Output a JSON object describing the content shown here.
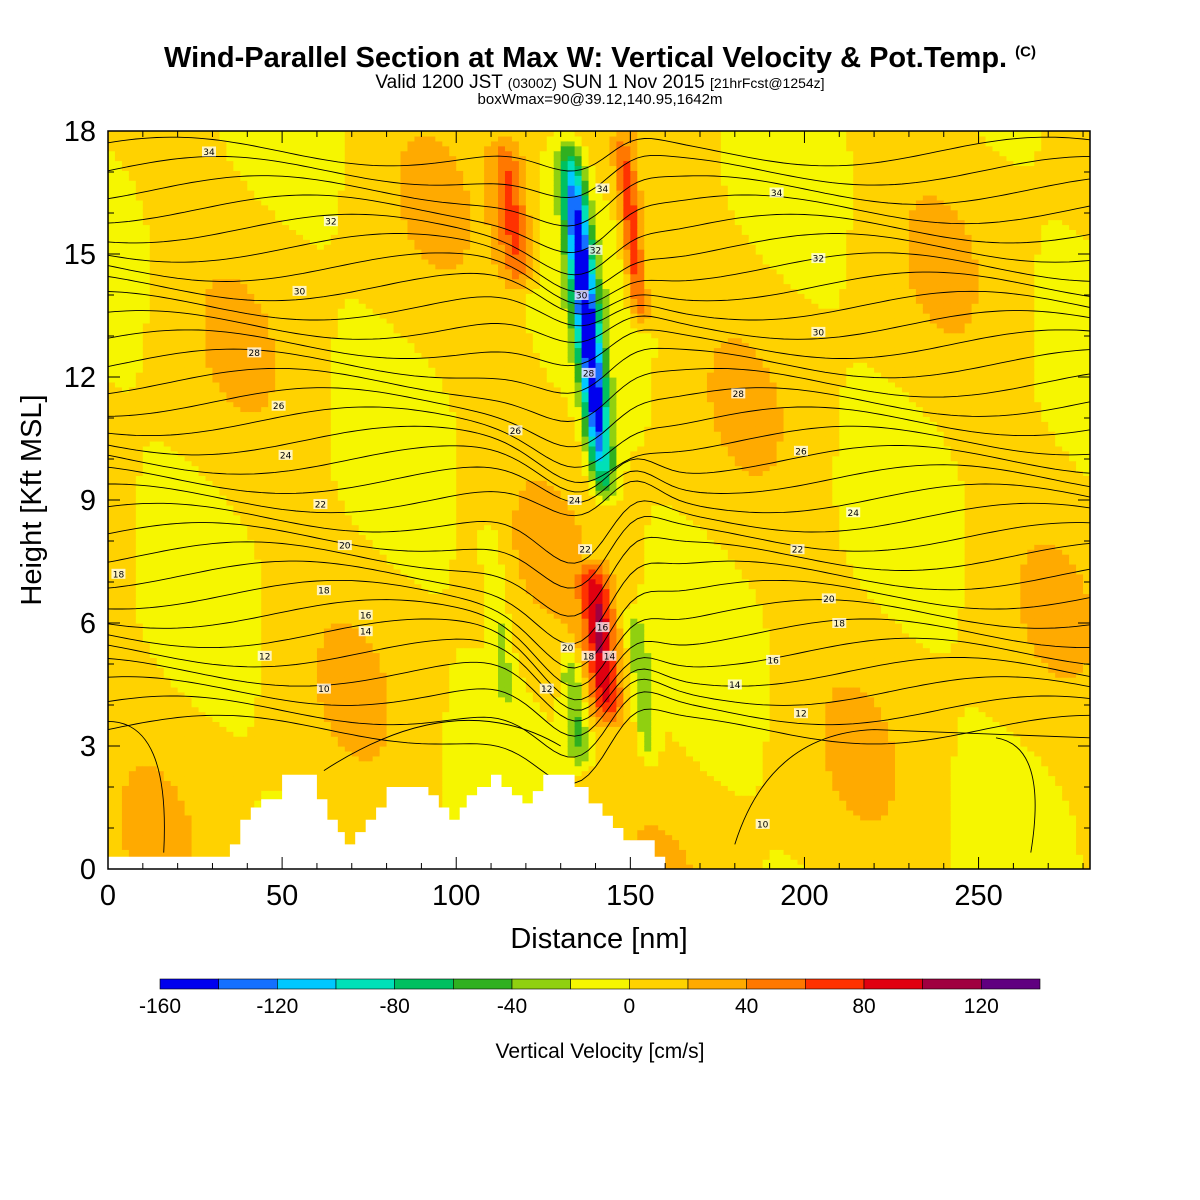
{
  "header": {
    "title": "Wind-Parallel Section at Max W: Vertical Velocity & Pot.Temp.",
    "title_mark": "(C)",
    "subtitle_a": "Valid 1200 JST",
    "subtitle_b": "(0300Z)",
    "subtitle_c": "SUN 1 Nov 2015",
    "subtitle_d": "[21hrFcst@1254z]",
    "subtitle_small": "boxWmax=90@39.12,140.95,1642m"
  },
  "chart_data": {
    "type": "heatmap",
    "title": "Wind-Parallel Section at Max W: Vertical Velocity & Pot.Temp.",
    "xlabel": "Distance [nm]",
    "ylabel": "Height [Kft MSL]",
    "xlim": [
      0,
      282
    ],
    "ylim": [
      0,
      18
    ],
    "x_ticks": [
      0,
      50,
      100,
      150,
      200,
      250
    ],
    "y_ticks": [
      0,
      3,
      6,
      9,
      12,
      15,
      18
    ],
    "colorbar": {
      "label": "Vertical Velocity [cm/s]",
      "bounds": [
        -160,
        140
      ],
      "tick_labels": [
        -160,
        -120,
        -80,
        -40,
        0,
        40,
        80,
        120
      ],
      "colors": [
        "#0000ee",
        "#1470ff",
        "#00c8ff",
        "#00e0b8",
        "#00c060",
        "#30b020",
        "#90d010",
        "#f6f600",
        "#ffd200",
        "#ffaa00",
        "#ff7800",
        "#ff3200",
        "#e00010",
        "#a00040",
        "#600080"
      ]
    },
    "vertical_velocity_features": [
      {
        "x_range": [
          133,
          142
        ],
        "height_range": [
          8.8,
          18
        ],
        "w_min": -160
      },
      {
        "x_range": [
          147,
          154
        ],
        "height_range": [
          13,
          18
        ],
        "w_max": 70
      },
      {
        "x_range": [
          136,
          147
        ],
        "height_range": [
          3.4,
          7.6
        ],
        "w_max": 90
      },
      {
        "x_range": [
          130,
          138
        ],
        "height_range": [
          2.3,
          5.5
        ],
        "w_min": -50
      },
      {
        "x_range": [
          150,
          157
        ],
        "height_range": [
          2.3,
          6.5
        ],
        "w_min": -40
      },
      {
        "x_range": [
          108,
          116
        ],
        "height_range": [
          3.7,
          8.7
        ],
        "w_min": -30
      },
      {
        "x_range": [
          110,
          122
        ],
        "height_range": [
          14,
          18
        ],
        "w_max": 60
      }
    ],
    "terrain_profile": {
      "x": [
        0,
        32,
        35,
        38,
        41,
        44,
        50,
        57,
        60,
        63,
        66,
        68,
        71,
        74,
        77,
        80,
        86,
        92,
        95,
        98,
        101,
        103,
        106,
        110,
        113,
        116,
        119,
        122,
        125,
        130,
        134,
        138,
        142,
        145,
        148,
        152,
        157,
        160,
        282
      ],
      "height": [
        0.3,
        0.3,
        0.6,
        1.2,
        1.5,
        1.7,
        2.3,
        2.3,
        1.7,
        1.2,
        0.9,
        0.6,
        0.9,
        1.2,
        1.5,
        2.0,
        2.0,
        1.8,
        1.5,
        1.2,
        1.5,
        1.8,
        2.0,
        2.3,
        2.0,
        1.8,
        1.6,
        1.9,
        2.3,
        2.3,
        2.0,
        1.6,
        1.3,
        1.0,
        0.7,
        0.7,
        0.3,
        0.0,
        0.0
      ]
    },
    "potential_temperature_contour_labels": [
      {
        "value": "34",
        "x": 29,
        "y": 17.5
      },
      {
        "value": "32",
        "x": 64,
        "y": 15.8
      },
      {
        "value": "30",
        "x": 55,
        "y": 14.1
      },
      {
        "value": "28",
        "x": 42,
        "y": 12.6
      },
      {
        "value": "26",
        "x": 49,
        "y": 11.3
      },
      {
        "value": "24",
        "x": 51,
        "y": 10.1
      },
      {
        "value": "22",
        "x": 61,
        "y": 8.9
      },
      {
        "value": "20",
        "x": 68,
        "y": 7.9
      },
      {
        "value": "18",
        "x": 3,
        "y": 7.2
      },
      {
        "value": "18",
        "x": 62,
        "y": 6.8
      },
      {
        "value": "16",
        "x": 74,
        "y": 6.2
      },
      {
        "value": "14",
        "x": 74,
        "y": 5.8
      },
      {
        "value": "12",
        "x": 45,
        "y": 5.2
      },
      {
        "value": "10",
        "x": 62,
        "y": 4.4
      },
      {
        "value": "26",
        "x": 117,
        "y": 10.7
      },
      {
        "value": "24",
        "x": 134,
        "y": 9.0
      },
      {
        "value": "22",
        "x": 137,
        "y": 7.8
      },
      {
        "value": "20",
        "x": 132,
        "y": 5.4
      },
      {
        "value": "18",
        "x": 138,
        "y": 5.2
      },
      {
        "value": "16",
        "x": 142,
        "y": 5.9
      },
      {
        "value": "14",
        "x": 144,
        "y": 5.2
      },
      {
        "value": "12",
        "x": 126,
        "y": 4.4
      },
      {
        "value": "34",
        "x": 142,
        "y": 16.6
      },
      {
        "value": "32",
        "x": 140,
        "y": 15.1
      },
      {
        "value": "30",
        "x": 136,
        "y": 14.0
      },
      {
        "value": "28",
        "x": 138,
        "y": 12.1
      },
      {
        "value": "34",
        "x": 192,
        "y": 16.5
      },
      {
        "value": "32",
        "x": 204,
        "y": 14.9
      },
      {
        "value": "30",
        "x": 204,
        "y": 13.1
      },
      {
        "value": "28",
        "x": 181,
        "y": 11.6
      },
      {
        "value": "26",
        "x": 199,
        "y": 10.2
      },
      {
        "value": "24",
        "x": 214,
        "y": 8.7
      },
      {
        "value": "22",
        "x": 198,
        "y": 7.8
      },
      {
        "value": "20",
        "x": 207,
        "y": 6.6
      },
      {
        "value": "18",
        "x": 210,
        "y": 6.0
      },
      {
        "value": "16",
        "x": 191,
        "y": 5.1
      },
      {
        "value": "14",
        "x": 180,
        "y": 4.5
      },
      {
        "value": "12",
        "x": 199,
        "y": 3.8
      },
      {
        "value": "10",
        "x": 188,
        "y": 1.1
      }
    ]
  }
}
